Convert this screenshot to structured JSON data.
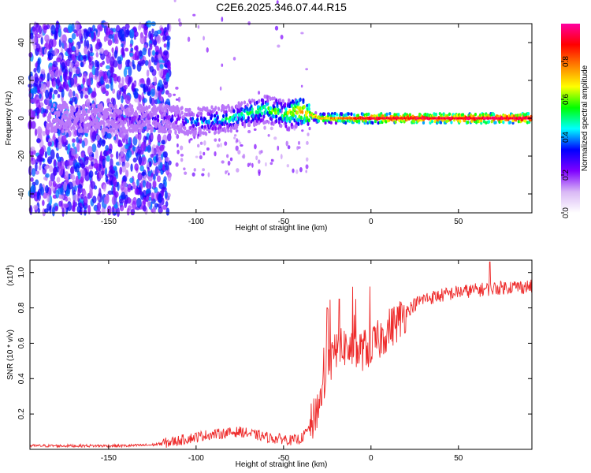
{
  "title": "C2E6.2025.346.07.44.R15",
  "chart_data": [
    {
      "type": "heatmap",
      "name": "spectrogram",
      "xlabel": "Height of straight line (km)",
      "ylabel": "Frequency (Hz)",
      "xlim": [
        -195,
        92
      ],
      "ylim": [
        -50,
        50
      ],
      "xticks": [
        -150,
        -100,
        -50,
        0,
        50
      ],
      "yticks": [
        -40,
        -20,
        0,
        20,
        40
      ],
      "colorbar": {
        "label": "Normalized spectral amplitude",
        "range": [
          0,
          1
        ],
        "ticks": [
          0.0,
          0.2,
          0.4,
          0.6,
          0.8
        ],
        "tick_labels": [
          "0.0",
          "0.2",
          "0.4",
          "0.6",
          "0.8"
        ],
        "colormap": [
          "#ffffff",
          "#d9b8f5",
          "#7f00ff",
          "#0000ff",
          "#00ffff",
          "#00ff00",
          "#ffff00",
          "#ff8000",
          "#ff0000",
          "#ff00a0"
        ]
      },
      "ridge": {
        "description_points_x": [
          -195,
          -120,
          -100,
          -80,
          -60,
          -50,
          -40,
          -30,
          0,
          92
        ],
        "center_freq": [
          0,
          0,
          -2,
          0,
          5,
          2,
          4,
          0,
          0,
          0
        ],
        "peak_amplitude": [
          0.05,
          0.25,
          0.4,
          0.5,
          0.55,
          0.6,
          0.75,
          0.7,
          0.9,
          0.95
        ]
      }
    },
    {
      "type": "line",
      "name": "snr",
      "xlabel": "Height of straight line (km)",
      "ylabel": "SNR (10 * v/v)",
      "multiplier_label": "(x10",
      "multiplier_exp": "4",
      "multiplier_close": ")",
      "xlim": [
        -195,
        92
      ],
      "ylim": [
        0,
        1.07
      ],
      "xticks": [
        -150,
        -100,
        -50,
        0,
        50
      ],
      "yticks": [
        0.2,
        0.4,
        0.6,
        0.8,
        1.0
      ],
      "ytick_labels": [
        "0.2",
        "0.4",
        "0.6",
        "0.8",
        "1.0"
      ],
      "color": "#ee2a2a",
      "series": [
        {
          "name": "SNR",
          "x": [
            -195,
            -180,
            -160,
            -140,
            -125,
            -115,
            -105,
            -95,
            -85,
            -75,
            -65,
            -60,
            -55,
            -50,
            -45,
            -40,
            -35,
            -30,
            -25,
            -20,
            -15,
            -10,
            -5,
            0,
            5,
            10,
            15,
            20,
            25,
            30,
            40,
            50,
            60,
            70,
            80,
            92
          ],
          "y": [
            0.02,
            0.02,
            0.02,
            0.02,
            0.025,
            0.04,
            0.06,
            0.08,
            0.09,
            0.1,
            0.08,
            0.07,
            0.06,
            0.06,
            0.05,
            0.06,
            0.12,
            0.25,
            0.45,
            0.55,
            0.58,
            0.55,
            0.56,
            0.58,
            0.62,
            0.68,
            0.72,
            0.78,
            0.82,
            0.85,
            0.87,
            0.89,
            0.9,
            0.91,
            0.92,
            0.92
          ]
        }
      ],
      "annotations": [
        {
          "x": 68,
          "y": 1.06,
          "note": "spike"
        },
        {
          "x": -25,
          "y": 0.8,
          "note": "spike"
        },
        {
          "x": -18,
          "y": 0.85,
          "note": "spike"
        }
      ]
    }
  ]
}
